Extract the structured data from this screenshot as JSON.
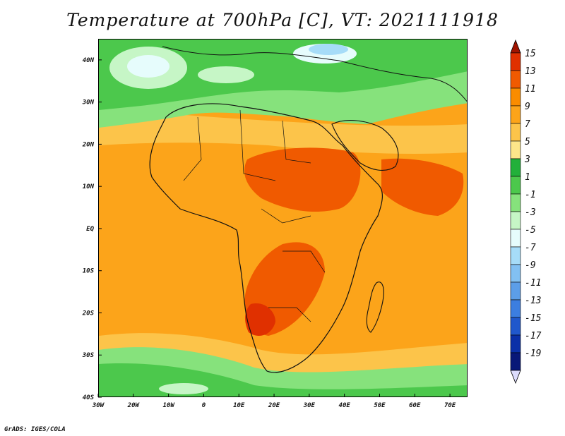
{
  "title": "Temperature at 700hPa [C], VT: 2021111918",
  "footer": "GrADS: IGES/COLA",
  "map": {
    "lon_range": [
      -30,
      75
    ],
    "lat_range": [
      -40,
      45
    ],
    "x_ticks": [
      "30W",
      "20W",
      "10W",
      "0",
      "10E",
      "20E",
      "30E",
      "40E",
      "50E",
      "60E",
      "70E"
    ],
    "y_ticks": [
      "40N",
      "30N",
      "20N",
      "10N",
      "EQ",
      "10S",
      "20S",
      "30S",
      "40S"
    ]
  },
  "colorbar": {
    "levels": [
      "15",
      "13",
      "11",
      "9",
      "7",
      "5",
      "3",
      "1",
      "-1",
      "-3",
      "-5",
      "-7",
      "-9",
      "-11",
      "-13",
      "-15",
      "-17",
      "-19"
    ],
    "colors": [
      "#a01400",
      "#e03000",
      "#f05a00",
      "#fa8c00",
      "#fca41a",
      "#fcc44a",
      "#fde68a",
      "#22b03a",
      "#4cc84c",
      "#86e27c",
      "#c6f6c6",
      "#e6fcfc",
      "#a6dcf8",
      "#82c0f2",
      "#5c9ee8",
      "#3c7ee0",
      "#2058cc",
      "#0a30a8",
      "#081878"
    ],
    "top_arrow_color": "#a01400",
    "bottom_arrow_color": "#dcdcfc"
  }
}
